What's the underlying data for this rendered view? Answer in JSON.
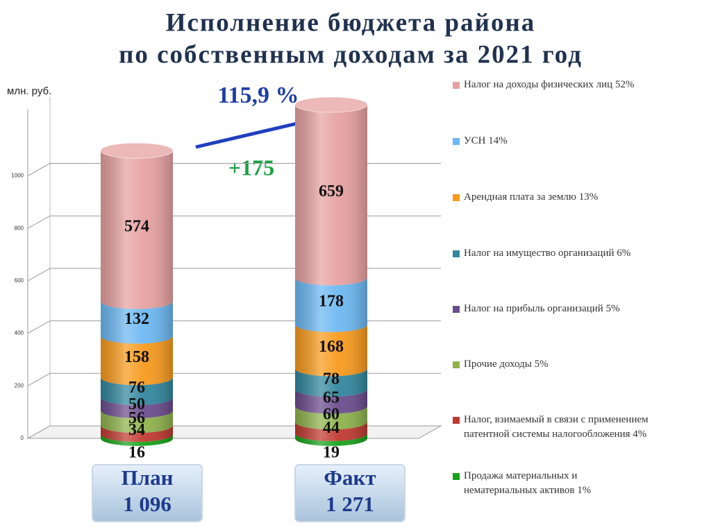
{
  "chart_data": {
    "type": "bar3d_stacked",
    "title": [
      "Исполнение бюджета района",
      "по собственным доходам  за 2021 год"
    ],
    "y_axis_label": "млн. руб.",
    "categories": [
      "План",
      "Факт"
    ],
    "ylim": [
      0,
      1300
    ],
    "yticks": [
      0,
      200,
      400,
      600,
      800,
      1000
    ],
    "grid": true,
    "legend": "right",
    "series": [
      {
        "name": "Продажа материальных и нематериальных активов  1%",
        "color": "#17a21a",
        "values": [
          16,
          19
        ]
      },
      {
        "name": "Налог, взимаемый в связи с применением патентной системы налогообложения 4%",
        "color": "#c0392f",
        "values": [
          34,
          44
        ]
      },
      {
        "name": "Прочие доходы 5%",
        "color": "#8fb34c",
        "values": [
          56,
          60
        ]
      },
      {
        "name": "Налог на прибыль организаций  5%",
        "color": "#6b4c8e",
        "values": [
          50,
          65
        ]
      },
      {
        "name": "Налог на имущество организаций 6%",
        "color": "#31879e",
        "values": [
          76,
          78
        ]
      },
      {
        "name": "Арендная плата за землю 13%",
        "color": "#f89a1c",
        "values": [
          158,
          168
        ]
      },
      {
        "name": "УСН 14%",
        "color": "#6cb8f2",
        "values": [
          132,
          178
        ]
      },
      {
        "name": "Налог на доходы физических лиц  52%",
        "color": "#e7a1a1",
        "values": [
          574,
          659
        ]
      }
    ],
    "totals": {
      "values": [
        1096,
        1271
      ],
      "value_labels": [
        "1 096",
        "1 271"
      ]
    },
    "annotations": [
      "115,9 %",
      "+175"
    ]
  }
}
